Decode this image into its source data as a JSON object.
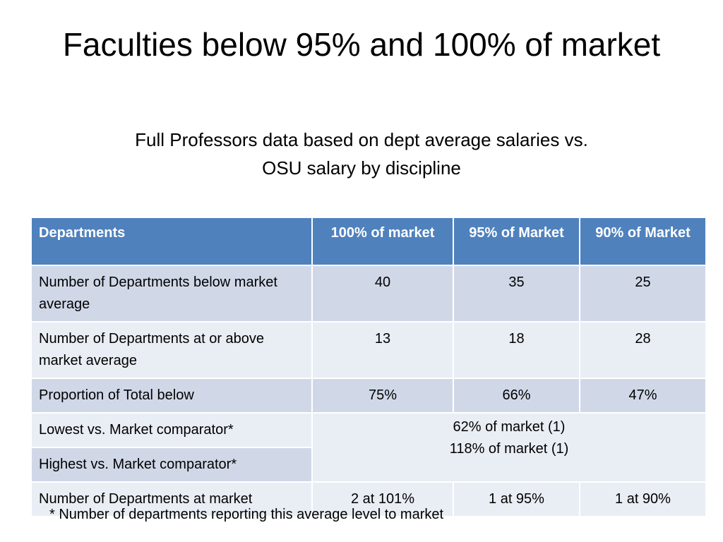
{
  "title": "Faculties below 95% and 100% of market",
  "subtitle": "Full Professors data based on dept average salaries vs. OSU salary by discipline",
  "table": {
    "headers": [
      "Departments",
      "100% of market",
      "95% of Market",
      "90% of Market"
    ],
    "rows": {
      "below": {
        "label": "Number of Departments below market average",
        "values": [
          "40",
          "35",
          "25"
        ]
      },
      "at_or_above": {
        "label": "Number of Departments at or above market average",
        "values": [
          "13",
          "18",
          "28"
        ]
      },
      "proportion": {
        "label": "Proportion of Total below",
        "values": [
          "75%",
          "66%",
          "47%"
        ]
      },
      "lowest": {
        "label": "Lowest vs. Market comparator*"
      },
      "highest": {
        "label": "Highest vs. Market comparator*"
      },
      "comparator_values": {
        "line1": "62% of market (1)",
        "line2": "118% of market (1)"
      },
      "at_market": {
        "label": "Number of Departments at market",
        "values": [
          "2 at 101%",
          "1 at 95%",
          "1 at 90%"
        ]
      }
    }
  },
  "footnote": "* Number of departments reporting this average level to market",
  "colors": {
    "header_bg": "#4f81bd",
    "row_dark": "#d0d8e8",
    "row_light": "#e9edf4"
  }
}
